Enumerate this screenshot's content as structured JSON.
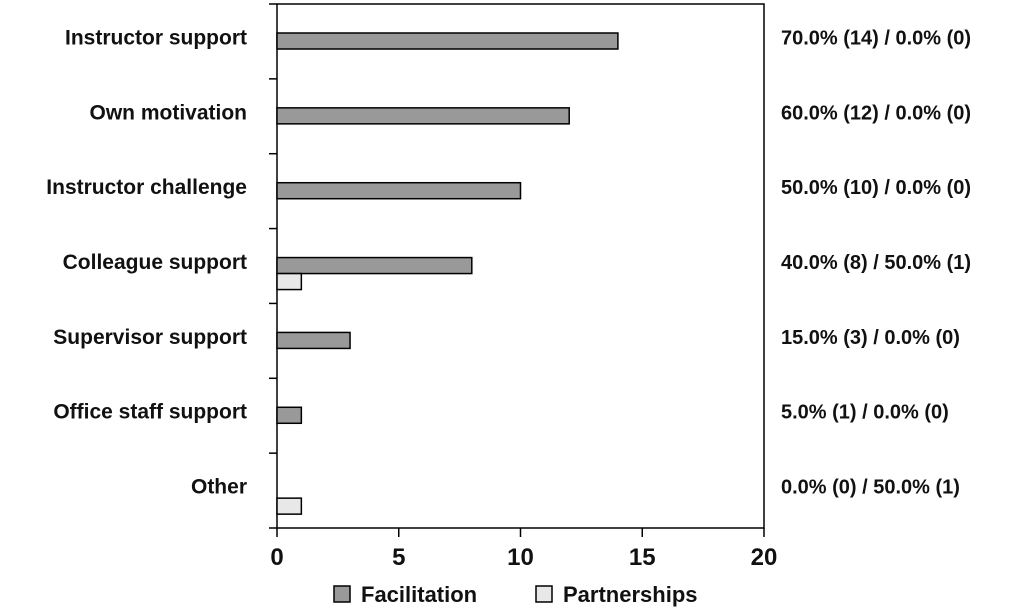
{
  "chart_data": {
    "type": "bar",
    "orientation": "horizontal",
    "categories": [
      "Instructor support",
      "Own motivation",
      "Instructor challenge",
      "Colleague support",
      "Supervisor support",
      "Office staff support",
      "Other"
    ],
    "series": [
      {
        "name": "Facilitation",
        "values": [
          14,
          12,
          10,
          8,
          3,
          1,
          0
        ],
        "color": "#999999"
      },
      {
        "name": "Partnerships",
        "values": [
          0,
          0,
          0,
          1,
          0,
          0,
          1
        ],
        "color": "#e8e8e8"
      }
    ],
    "data_labels": [
      "70.0% (14) / 0.0% (0)",
      "60.0% (12) / 0.0% (0)",
      "50.0% (10) / 0.0% (0)",
      "40.0% (8) / 50.0% (1)",
      "15.0% (3) / 0.0% (0)",
      "5.0% (1) / 0.0% (0)",
      "0.0% (0) / 50.0% (1)"
    ],
    "x_ticks": [
      "0",
      "5",
      "10",
      "15",
      "20"
    ],
    "xlim": [
      0,
      20
    ],
    "grid": false,
    "legend_position": "bottom",
    "title": "",
    "xlabel": "",
    "ylabel": ""
  }
}
